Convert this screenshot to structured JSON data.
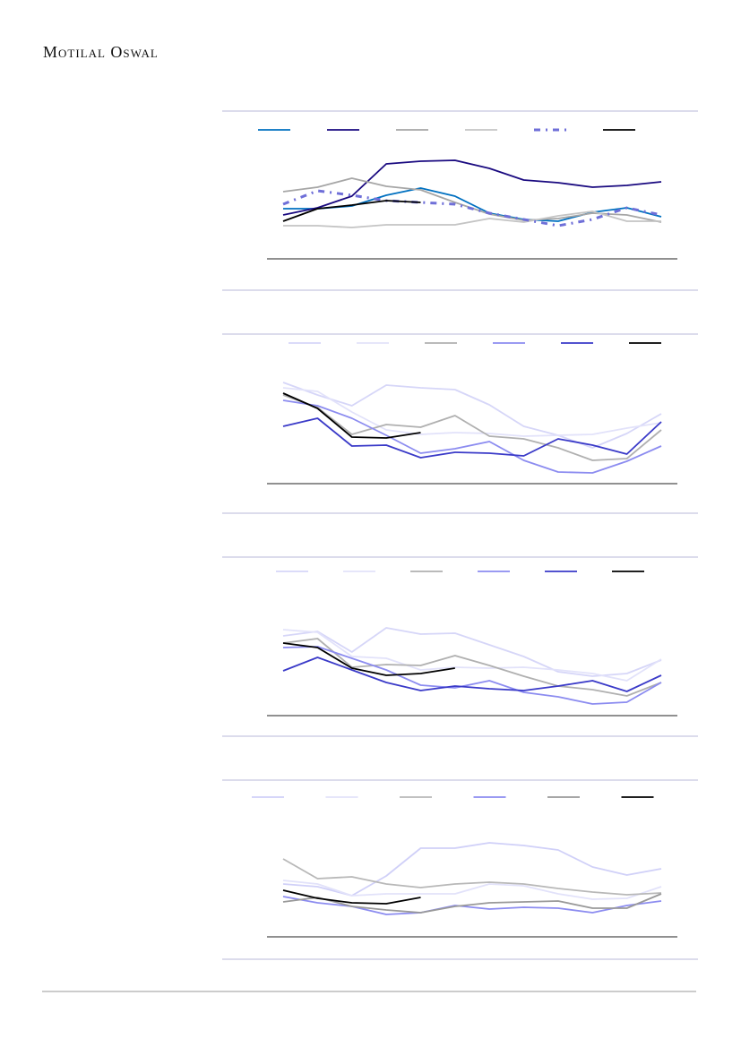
{
  "header": {
    "title": "Motilal Oswal"
  },
  "chart_data": [
    {
      "type": "line",
      "ylim": [
        0,
        140
      ],
      "series": [
        {
          "color": "#0070c0",
          "values": [
            56,
            56,
            59,
            71,
            79,
            70,
            51,
            44,
            42,
            52,
            57,
            47
          ]
        },
        {
          "color": "#1a0a80",
          "values": [
            49,
            57,
            70,
            106,
            109,
            110,
            101,
            88,
            85,
            80,
            82,
            86
          ]
        },
        {
          "color": "#a6a6a6",
          "values": [
            75,
            80,
            90,
            81,
            77,
            63,
            50,
            43,
            45,
            51,
            49,
            41
          ]
        },
        {
          "color": "#c4c4c4",
          "values": [
            37,
            37,
            35,
            38,
            38,
            38,
            45,
            41,
            48,
            53,
            42,
            42
          ]
        },
        {
          "color": "#6f6fd8",
          "dash": "dash-dot",
          "values": [
            61,
            76,
            71,
            65,
            63,
            61,
            51,
            44,
            37,
            44,
            57,
            49
          ]
        },
        {
          "color": "#000000",
          "values": [
            42,
            56,
            60,
            65,
            63,
            null,
            null,
            null,
            null,
            null,
            null,
            null
          ]
        }
      ]
    },
    {
      "type": "line",
      "ylim": [
        0,
        140
      ],
      "series": [
        {
          "color": "#d6d6f8",
          "values": [
            113,
            99,
            87,
            110,
            107,
            105,
            88,
            64,
            54,
            40,
            56,
            78
          ]
        },
        {
          "color": "#e2e2fa",
          "values": [
            107,
            103,
            80,
            60,
            55,
            57,
            56,
            53,
            54,
            55,
            62,
            68
          ]
        },
        {
          "color": "#b0b0b0",
          "values": [
            99,
            85,
            55,
            66,
            63,
            76,
            53,
            50,
            40,
            26,
            28,
            60
          ]
        },
        {
          "color": "#8c8cf0",
          "values": [
            93,
            87,
            73,
            54,
            34,
            39,
            47,
            26,
            13,
            12,
            25,
            42
          ]
        },
        {
          "color": "#3a3ac8",
          "values": [
            64,
            73,
            42,
            43,
            29,
            35,
            34,
            31,
            50,
            43,
            33,
            69
          ]
        },
        {
          "color": "#000000",
          "values": [
            101,
            84,
            52,
            51,
            57,
            null,
            null,
            null,
            null,
            null,
            null,
            null
          ]
        }
      ]
    },
    {
      "type": "line",
      "ylim": [
        0,
        140
      ],
      "series": [
        {
          "color": "#d6d6f8",
          "values": [
            89,
            94,
            71,
            98,
            91,
            92,
            79,
            66,
            49,
            44,
            47,
            62
          ]
        },
        {
          "color": "#e2e2fa",
          "values": [
            96,
            93,
            66,
            64,
            51,
            54,
            53,
            54,
            51,
            47,
            39,
            63
          ]
        },
        {
          "color": "#b0b0b0",
          "values": [
            81,
            86,
            54,
            57,
            56,
            67,
            56,
            44,
            33,
            29,
            22,
            37
          ]
        },
        {
          "color": "#8c8cf0",
          "values": [
            76,
            77,
            64,
            51,
            34,
            31,
            39,
            26,
            21,
            13,
            15,
            37
          ]
        },
        {
          "color": "#3a3ac8",
          "values": [
            50,
            65,
            51,
            37,
            28,
            33,
            30,
            28,
            33,
            39,
            27,
            45
          ]
        },
        {
          "color": "#000000",
          "values": [
            81,
            76,
            53,
            45,
            47,
            53,
            null,
            null,
            null,
            null,
            null,
            null
          ]
        }
      ]
    },
    {
      "type": "line",
      "ylim": [
        0,
        140
      ],
      "series": [
        {
          "color": "#d0d0f8",
          "values": [
            59,
            56,
            46,
            68,
            99,
            99,
            105,
            102,
            97,
            78,
            69,
            76
          ]
        },
        {
          "color": "#e2e2fa",
          "values": [
            63,
            59,
            46,
            48,
            48,
            48,
            59,
            57,
            48,
            42,
            43,
            56
          ]
        },
        {
          "color": "#b8b8b8",
          "values": [
            87,
            65,
            67,
            59,
            55,
            59,
            61,
            59,
            54,
            50,
            47,
            49
          ]
        },
        {
          "color": "#8c8cf0",
          "values": [
            45,
            38,
            34,
            25,
            27,
            35,
            31,
            33,
            32,
            27,
            35,
            40
          ]
        },
        {
          "color": "#999999",
          "values": [
            39,
            44,
            34,
            30,
            27,
            34,
            38,
            39,
            40,
            32,
            32,
            48
          ]
        },
        {
          "color": "#000000",
          "values": [
            52,
            43,
            38,
            37,
            44,
            null,
            null,
            null,
            null,
            null,
            null,
            null
          ]
        }
      ]
    }
  ]
}
